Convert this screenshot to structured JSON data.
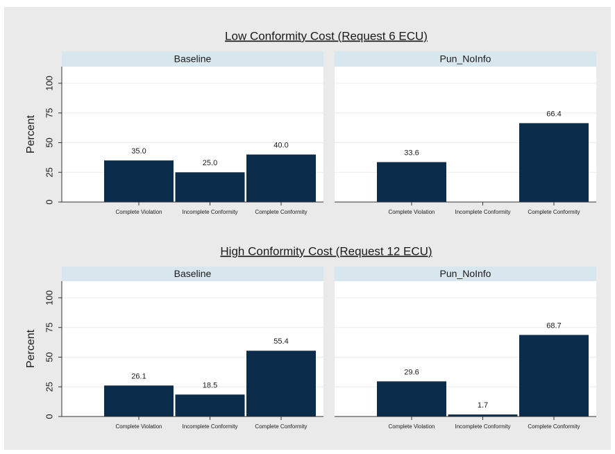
{
  "chart_data": [
    {
      "type": "bar",
      "title": "Low Conformity Cost (Request 6 ECU)",
      "ylabel": "Percent",
      "categories": [
        "Complete Violation",
        "Incomplete Conformity",
        "Complete Conformity"
      ],
      "ylim": [
        0,
        114
      ],
      "yticks": [
        0,
        25,
        50,
        75,
        100
      ],
      "grid": true,
      "color": "#0c2c4b",
      "series": [
        {
          "name": "Baseline",
          "values": [
            35.0,
            25.0,
            40.0
          ],
          "value_labels": [
            "35.0",
            "25.0",
            "40.0"
          ]
        },
        {
          "name": "Pun_NoInfo",
          "values": [
            33.6,
            0,
            66.4
          ],
          "value_labels": [
            "33.6",
            null,
            "66.4"
          ]
        }
      ]
    },
    {
      "type": "bar",
      "title": "High Conformity Cost (Request 12 ECU)",
      "ylabel": "Percent",
      "categories": [
        "Complete Violation",
        "Incomplete Conformity",
        "Complete Conformity"
      ],
      "ylim": [
        0,
        114
      ],
      "yticks": [
        0,
        25,
        50,
        75,
        100
      ],
      "grid": true,
      "color": "#0c2c4b",
      "series": [
        {
          "name": "Baseline",
          "values": [
            26.1,
            18.5,
            55.4
          ],
          "value_labels": [
            "26.1",
            "18.5",
            "55.4"
          ]
        },
        {
          "name": "Pun_NoInfo",
          "values": [
            29.6,
            1.7,
            68.7
          ],
          "value_labels": [
            "29.6",
            "1.7",
            "68.7"
          ]
        }
      ]
    }
  ]
}
